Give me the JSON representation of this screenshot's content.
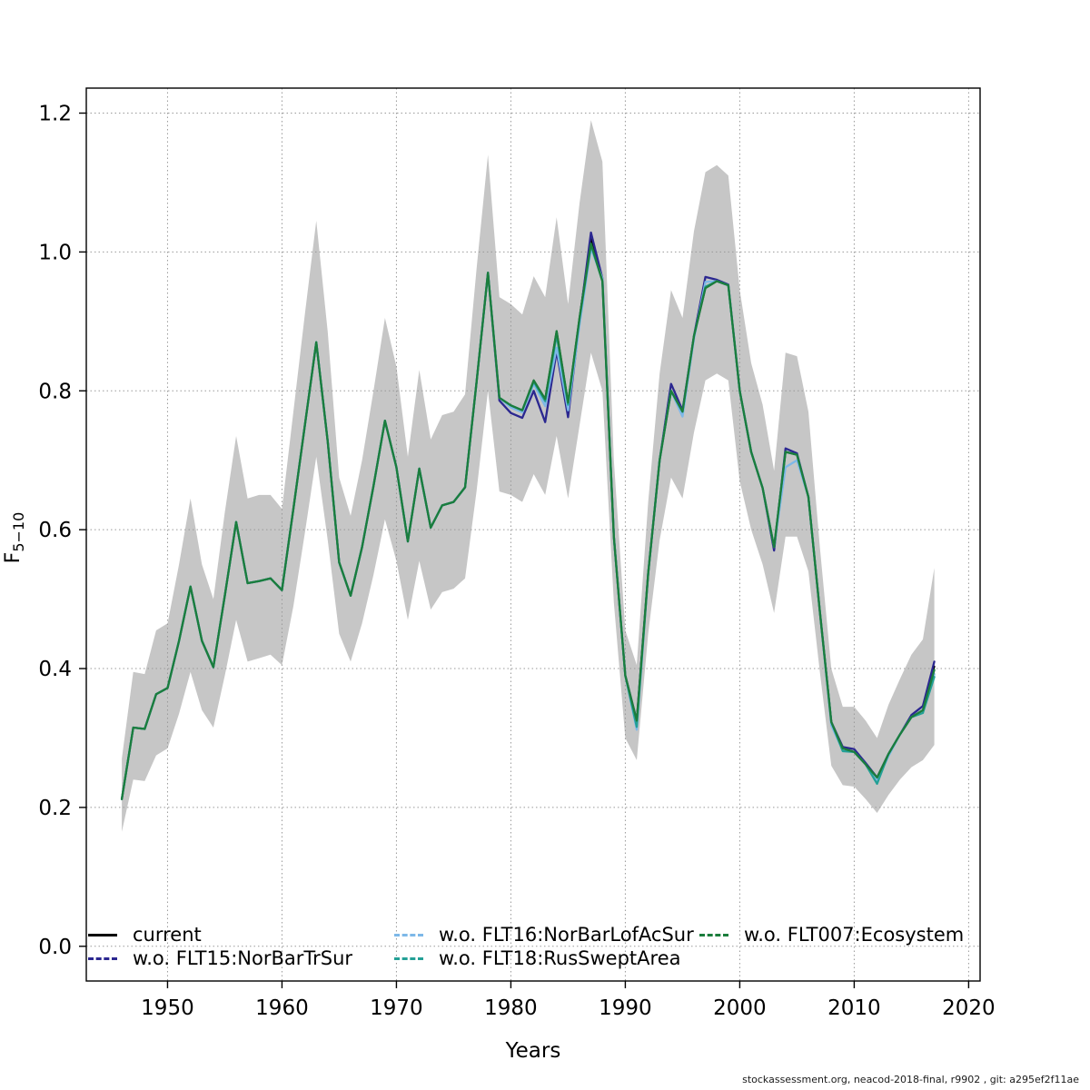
{
  "figure": {
    "xlabel": "Years",
    "ylabel_base": "F",
    "ylabel_sub": "5−10",
    "footer": "stockassessment.org, neacod-2018-final, r9902 , git: a295ef2f11ae"
  },
  "legend": {
    "items": [
      {
        "label": "current",
        "color": "#000000",
        "dash": "solid"
      },
      {
        "label": "w.o. FLT15:NorBarTrSur",
        "color": "#2b2790",
        "dash": "dashed"
      },
      {
        "label": "w.o. FLT16:NorBarLofAcSur",
        "color": "#7db8e8",
        "dash": "dashed"
      },
      {
        "label": "w.o. FLT18:RusSweptArea",
        "color": "#23a096",
        "dash": "dashed"
      },
      {
        "label": "w.o. FLT007:Ecosystem",
        "color": "#1b7d3c",
        "dash": "dashed"
      }
    ]
  },
  "chart_data": {
    "type": "line",
    "title": "",
    "xlabel": "Years",
    "ylabel": "F_5-10",
    "grid": "dotted",
    "grid_color": "#999999",
    "band_color": "#c6c6c6",
    "xlim": [
      1942.9,
      2021.0
    ],
    "ylim": [
      -0.05,
      1.236
    ],
    "xticks": [
      1950,
      1960,
      1970,
      1980,
      1990,
      2000,
      2010,
      2020
    ],
    "yticks": [
      0,
      0.2,
      0.4,
      0.6,
      0.8,
      1.0,
      1.2
    ],
    "ytick_labels": [
      "0.0",
      "0.2",
      "0.4",
      "0.6",
      "0.8",
      "1.0",
      "1.2"
    ],
    "x": [
      1946,
      1947,
      1948,
      1949,
      1950,
      1951,
      1952,
      1953,
      1954,
      1955,
      1956,
      1957,
      1958,
      1959,
      1960,
      1961,
      1962,
      1963,
      1964,
      1965,
      1966,
      1967,
      1968,
      1969,
      1970,
      1971,
      1972,
      1973,
      1974,
      1975,
      1976,
      1977,
      1978,
      1979,
      1980,
      1981,
      1982,
      1983,
      1984,
      1985,
      1986,
      1987,
      1988,
      1989,
      1990,
      1991,
      1992,
      1993,
      1994,
      1995,
      1996,
      1997,
      1998,
      1999,
      2000,
      2001,
      2002,
      2003,
      2004,
      2005,
      2006,
      2007,
      2008,
      2009,
      2010,
      2011,
      2012,
      2013,
      2014,
      2015,
      2016,
      2017
    ],
    "band": {
      "lower": [
        0.165,
        0.24,
        0.238,
        0.275,
        0.285,
        0.335,
        0.395,
        0.34,
        0.315,
        0.39,
        0.47,
        0.41,
        0.415,
        0.42,
        0.405,
        0.49,
        0.595,
        0.705,
        0.585,
        0.45,
        0.41,
        0.465,
        0.535,
        0.615,
        0.555,
        0.47,
        0.555,
        0.485,
        0.51,
        0.515,
        0.53,
        0.655,
        0.8,
        0.655,
        0.65,
        0.64,
        0.68,
        0.65,
        0.735,
        0.645,
        0.75,
        0.855,
        0.8,
        0.495,
        0.3,
        0.268,
        0.45,
        0.585,
        0.675,
        0.645,
        0.74,
        0.815,
        0.825,
        0.815,
        0.67,
        0.6,
        0.55,
        0.48,
        0.59,
        0.59,
        0.54,
        0.395,
        0.26,
        0.232,
        0.23,
        0.212,
        0.192,
        0.218,
        0.24,
        0.258,
        0.268,
        0.29
      ],
      "upper": [
        0.27,
        0.395,
        0.392,
        0.455,
        0.465,
        0.55,
        0.645,
        0.55,
        0.5,
        0.625,
        0.735,
        0.645,
        0.65,
        0.65,
        0.63,
        0.77,
        0.91,
        1.045,
        0.885,
        0.675,
        0.62,
        0.7,
        0.8,
        0.905,
        0.835,
        0.705,
        0.83,
        0.73,
        0.765,
        0.77,
        0.795,
        0.975,
        1.14,
        0.935,
        0.925,
        0.91,
        0.965,
        0.935,
        1.05,
        0.925,
        1.07,
        1.19,
        1.13,
        0.7,
        0.455,
        0.405,
        0.64,
        0.825,
        0.945,
        0.905,
        1.03,
        1.115,
        1.125,
        1.11,
        0.945,
        0.84,
        0.78,
        0.685,
        0.855,
        0.85,
        0.77,
        0.575,
        0.4,
        0.345,
        0.345,
        0.325,
        0.3,
        0.348,
        0.385,
        0.42,
        0.442,
        0.545
      ]
    },
    "series": [
      {
        "name": "current",
        "color": "#000000",
        "width": 2.0,
        "values": [
          0.212,
          0.315,
          0.313,
          0.363,
          0.372,
          0.44,
          0.518,
          0.44,
          0.402,
          0.505,
          0.611,
          0.523,
          0.526,
          0.53,
          0.513,
          0.63,
          0.75,
          0.87,
          0.727,
          0.553,
          0.505,
          0.575,
          0.663,
          0.757,
          0.69,
          0.583,
          0.688,
          0.603,
          0.635,
          0.64,
          0.661,
          0.812,
          0.97,
          0.79,
          0.779,
          0.772,
          0.815,
          0.788,
          0.886,
          0.783,
          0.905,
          1.02,
          0.96,
          0.59,
          0.39,
          0.325,
          0.537,
          0.7,
          0.8,
          0.77,
          0.879,
          0.948,
          0.958,
          0.952,
          0.8,
          0.712,
          0.66,
          0.575,
          0.712,
          0.708,
          0.647,
          0.482,
          0.323,
          0.285,
          0.28,
          0.262,
          0.24,
          0.277,
          0.305,
          0.33,
          0.34,
          0.403
        ]
      },
      {
        "name": "w.o. FLT15:NorBarTrSur",
        "color": "#2b2790",
        "width": 2.3,
        "values": [
          0.212,
          0.315,
          0.313,
          0.363,
          0.372,
          0.44,
          0.518,
          0.44,
          0.402,
          0.505,
          0.611,
          0.523,
          0.526,
          0.53,
          0.513,
          0.63,
          0.75,
          0.87,
          0.727,
          0.553,
          0.505,
          0.575,
          0.663,
          0.757,
          0.69,
          0.583,
          0.688,
          0.603,
          0.635,
          0.64,
          0.661,
          0.812,
          0.97,
          0.786,
          0.768,
          0.761,
          0.8,
          0.755,
          0.857,
          0.762,
          0.9,
          1.028,
          0.962,
          0.59,
          0.39,
          0.325,
          0.537,
          0.7,
          0.81,
          0.772,
          0.879,
          0.964,
          0.96,
          0.953,
          0.8,
          0.712,
          0.66,
          0.57,
          0.717,
          0.71,
          0.647,
          0.482,
          0.323,
          0.287,
          0.284,
          0.264,
          0.243,
          0.277,
          0.305,
          0.333,
          0.346,
          0.41
        ]
      },
      {
        "name": "w.o. FLT16:NorBarLofAcSur",
        "color": "#7db8e8",
        "width": 2.3,
        "values": [
          0.212,
          0.315,
          0.313,
          0.363,
          0.372,
          0.44,
          0.518,
          0.44,
          0.402,
          0.505,
          0.611,
          0.523,
          0.526,
          0.53,
          0.513,
          0.63,
          0.75,
          0.87,
          0.727,
          0.553,
          0.505,
          0.575,
          0.663,
          0.757,
          0.69,
          0.583,
          0.688,
          0.603,
          0.635,
          0.64,
          0.661,
          0.812,
          0.97,
          0.79,
          0.776,
          0.769,
          0.81,
          0.778,
          0.862,
          0.772,
          0.895,
          1.005,
          0.962,
          0.59,
          0.39,
          0.312,
          0.537,
          0.7,
          0.8,
          0.763,
          0.875,
          0.957,
          0.958,
          0.952,
          0.8,
          0.712,
          0.66,
          0.575,
          0.69,
          0.7,
          0.647,
          0.482,
          0.318,
          0.282,
          0.28,
          0.262,
          0.239,
          0.274,
          0.305,
          0.33,
          0.34,
          0.392
        ]
      },
      {
        "name": "w.o. FLT18:RusSweptArea",
        "color": "#23a096",
        "width": 2.3,
        "values": [
          0.212,
          0.315,
          0.313,
          0.363,
          0.372,
          0.44,
          0.518,
          0.44,
          0.402,
          0.505,
          0.611,
          0.523,
          0.526,
          0.53,
          0.513,
          0.63,
          0.75,
          0.87,
          0.727,
          0.553,
          0.505,
          0.575,
          0.663,
          0.757,
          0.69,
          0.583,
          0.688,
          0.603,
          0.635,
          0.64,
          0.661,
          0.812,
          0.97,
          0.79,
          0.779,
          0.772,
          0.813,
          0.785,
          0.88,
          0.78,
          0.903,
          1.01,
          0.958,
          0.59,
          0.39,
          0.316,
          0.537,
          0.7,
          0.8,
          0.77,
          0.879,
          0.95,
          0.958,
          0.952,
          0.8,
          0.712,
          0.66,
          0.575,
          0.712,
          0.708,
          0.647,
          0.482,
          0.323,
          0.281,
          0.28,
          0.262,
          0.234,
          0.277,
          0.305,
          0.33,
          0.336,
          0.388
        ]
      },
      {
        "name": "w.o. FLT007:Ecosystem",
        "color": "#1b7d3c",
        "width": 2.3,
        "values": [
          0.212,
          0.315,
          0.313,
          0.363,
          0.372,
          0.44,
          0.518,
          0.44,
          0.402,
          0.505,
          0.611,
          0.523,
          0.526,
          0.53,
          0.513,
          0.63,
          0.75,
          0.87,
          0.727,
          0.553,
          0.505,
          0.575,
          0.663,
          0.757,
          0.69,
          0.583,
          0.688,
          0.603,
          0.635,
          0.64,
          0.661,
          0.812,
          0.97,
          0.79,
          0.779,
          0.772,
          0.815,
          0.788,
          0.886,
          0.783,
          0.905,
          1.012,
          0.958,
          0.59,
          0.39,
          0.325,
          0.537,
          0.7,
          0.8,
          0.77,
          0.879,
          0.948,
          0.958,
          0.952,
          0.8,
          0.712,
          0.66,
          0.575,
          0.712,
          0.708,
          0.647,
          0.482,
          0.323,
          0.285,
          0.28,
          0.262,
          0.243,
          0.277,
          0.305,
          0.33,
          0.34,
          0.398
        ]
      }
    ]
  }
}
